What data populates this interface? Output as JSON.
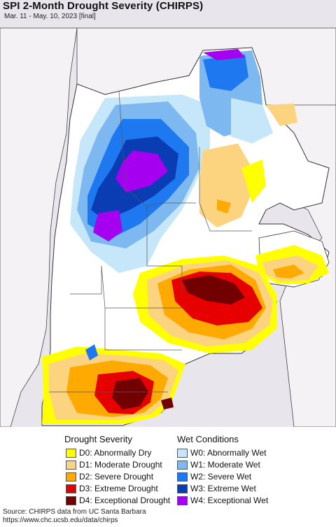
{
  "header": {
    "title": "SPI 2-Month Drought Severity (CHIRPS)",
    "subtitle": "Mar. 11 - May. 10, 2023 [final]"
  },
  "map": {
    "ocean_color": "#e8e6ec",
    "neighbor_land_color": "#f4f2f4",
    "normal_color": "#ffffff",
    "border_color": "#444444"
  },
  "legend": {
    "drought_title": "Drought Severity",
    "wet_title": "Wet Conditions",
    "drought_items": [
      {
        "label": "D0: Abnormally Dry",
        "color": "#ffff00"
      },
      {
        "label": "D1: Moderate Drought",
        "color": "#fcd37f"
      },
      {
        "label": "D2: Severe Drought",
        "color": "#ffaa00"
      },
      {
        "label": "D3: Extreme Drought",
        "color": "#e60000"
      },
      {
        "label": "D4: Exceptional Drought",
        "color": "#730000"
      }
    ],
    "wet_items": [
      {
        "label": "W0: Abnormally Wet",
        "color": "#c6e6fa"
      },
      {
        "label": "W1: Moderate Wet",
        "color": "#7db9f0"
      },
      {
        "label": "W2: Severe Wet",
        "color": "#1e78f0"
      },
      {
        "label": "W3: Extreme Wet",
        "color": "#0a3cb4"
      },
      {
        "label": "W4: Exceptional Wet",
        "color": "#a500f0"
      }
    ]
  },
  "footer": {
    "source_line": "Source: CHIRPS data from UC Santa Barbara",
    "url_line": "https://www.chc.ucsb.edu/data/chirps"
  }
}
